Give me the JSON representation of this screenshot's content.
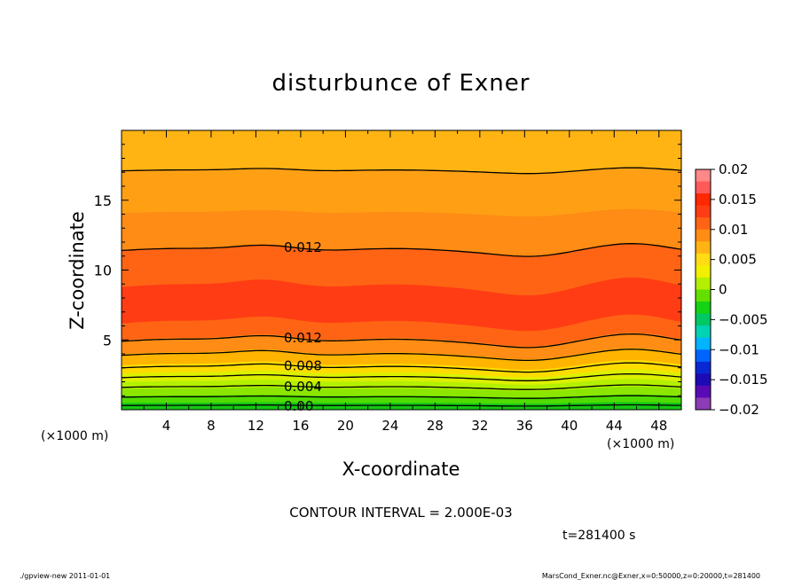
{
  "chart_data": {
    "type": "contour",
    "title": "disturbunce of Exner",
    "xlabel": "X-coordinate",
    "ylabel": "Z-coordinate",
    "x_unit_label": "(×1000 m)",
    "z_unit_label": "(×1000 m)",
    "xlim": [
      0,
      50
    ],
    "ylim": [
      0,
      20
    ],
    "x_ticks": [
      4,
      8,
      12,
      16,
      20,
      24,
      28,
      32,
      36,
      40,
      44,
      48
    ],
    "y_ticks": [
      5,
      10,
      15
    ],
    "contour_interval_text": "CONTOUR INTERVAL = 2.000E-03",
    "time_label": "t=281400 s",
    "colorbar": {
      "ticks": [
        0.02,
        0.015,
        0.01,
        0.005,
        0,
        -0.005,
        -0.01,
        -0.015,
        -0.02
      ],
      "tick_labels": [
        "0.02",
        "0.015",
        "0.01",
        "0.005",
        "0",
        "−0.005",
        "−0.01",
        "−0.015",
        "−0.02"
      ],
      "colors": [
        "#ff8888",
        "#ff5a5a",
        "#ff2800",
        "#ff3c14",
        "#ff6414",
        "#ff8c14",
        "#ffb414",
        "#ffdc14",
        "#f0f000",
        "#b4ee00",
        "#64e000",
        "#14d214",
        "#00c864",
        "#00d2b4",
        "#00b4ff",
        "#0064ff",
        "#0a28d2",
        "#1e0ab4",
        "#5a0ab4",
        "#8c3cb4"
      ]
    },
    "filled_levels": [
      {
        "upper_z": 0.5,
        "value": 0.0,
        "color": "#14c814"
      },
      {
        "upper_z": 1.0,
        "value": 0.001,
        "color": "#50dc00"
      },
      {
        "upper_z": 1.5,
        "value": 0.003,
        "color": "#8ce600"
      },
      {
        "upper_z": 2.0,
        "value": 0.004,
        "color": "#b4f000"
      },
      {
        "upper_z": 2.6,
        "value": 0.005,
        "color": "#dcf000"
      },
      {
        "upper_z": 3.2,
        "value": 0.007,
        "color": "#ffdc00"
      },
      {
        "upper_z": 4.0,
        "value": 0.008,
        "color": "#ffb400"
      },
      {
        "upper_z": 5.0,
        "value": 0.01,
        "color": "#ff8c14"
      },
      {
        "upper_z": 6.2,
        "value": 0.011,
        "color": "#ff6414"
      },
      {
        "upper_z": 8.8,
        "value": 0.013,
        "color": "#ff3c14"
      },
      {
        "upper_z": 11.4,
        "value": 0.011,
        "color": "#ff6414"
      },
      {
        "upper_z": 14.1,
        "value": 0.01,
        "color": "#ff8c14"
      },
      {
        "upper_z": 17.1,
        "value": 0.009,
        "color": "#ffa014"
      },
      {
        "upper_z": 20.0,
        "value": 0.007,
        "color": "#ffb414"
      }
    ],
    "contours": [
      {
        "level": 0.0,
        "z": 0.3,
        "label": "0.00"
      },
      {
        "level": 0.002,
        "z": 0.9,
        "label": ""
      },
      {
        "level": 0.004,
        "z": 1.6,
        "label": "0.004"
      },
      {
        "level": 0.006,
        "z": 2.3,
        "label": ""
      },
      {
        "level": 0.008,
        "z": 3.0,
        "label": "0.008"
      },
      {
        "level": 0.01,
        "z": 3.9,
        "label": ""
      },
      {
        "level": 0.012,
        "z": 4.9,
        "label": "0.012"
      },
      {
        "level": 0.012,
        "z": 11.4,
        "label": "0.012"
      },
      {
        "level": 0.01,
        "z": 17.1,
        "label": ""
      }
    ]
  },
  "footer": {
    "left": "./gpview-new   2011-01-01",
    "right": "MarsCond_Exner.nc@Exner,x=0:50000,z=0:20000,t=281400"
  }
}
